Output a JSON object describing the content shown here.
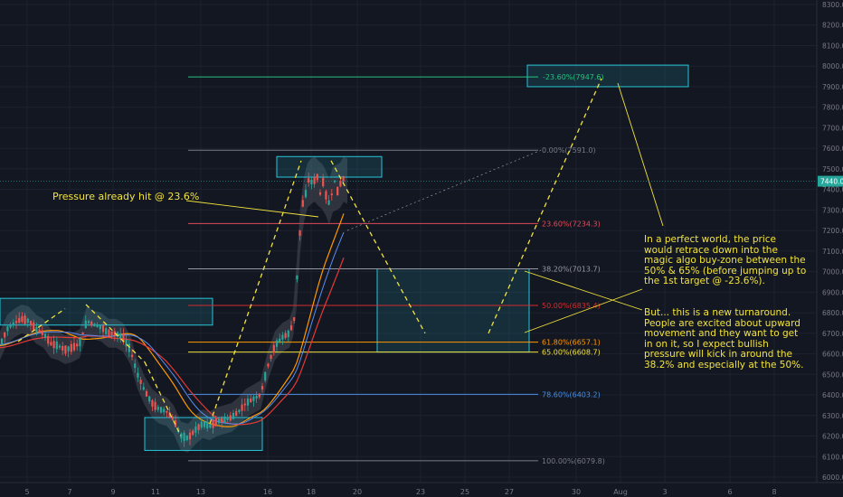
{
  "chart_data": {
    "type": "candlestick",
    "title": "",
    "xlabel": "",
    "ylabel": "",
    "ylim": [
      6000,
      8300
    ],
    "y_ticks": [
      "6000.0",
      "6100.0",
      "6200.0",
      "6300.0",
      "6400.0",
      "6500.0",
      "6600.0",
      "6700.0",
      "6800.0",
      "6900.0",
      "7000.0",
      "7100.0",
      "7200.0",
      "7300.0",
      "7400.0",
      "7500.0",
      "7600.0",
      "7700.0",
      "7800.0",
      "7900.0",
      "8000.0",
      "8100.0",
      "8200.0",
      "8300.0"
    ],
    "x_ticks": [
      "5",
      "7",
      "9",
      "11",
      "13",
      "16",
      "18",
      "20",
      "23",
      "25",
      "27",
      "30",
      "Aug",
      "3",
      "6",
      "8"
    ],
    "current_price": "7440.0",
    "price_path": [
      [
        0,
        6640
      ],
      [
        8,
        6720
      ],
      [
        16,
        6750
      ],
      [
        24,
        6770
      ],
      [
        32,
        6760
      ],
      [
        40,
        6720
      ],
      [
        48,
        6700
      ],
      [
        56,
        6650
      ],
      [
        64,
        6640
      ],
      [
        72,
        6620
      ],
      [
        80,
        6630
      ],
      [
        88,
        6650
      ],
      [
        96,
        6760
      ],
      [
        104,
        6740
      ],
      [
        112,
        6730
      ],
      [
        120,
        6700
      ],
      [
        128,
        6700
      ],
      [
        136,
        6680
      ],
      [
        144,
        6620
      ],
      [
        152,
        6500
      ],
      [
        160,
        6420
      ],
      [
        168,
        6360
      ],
      [
        176,
        6330
      ],
      [
        184,
        6320
      ],
      [
        192,
        6280
      ],
      [
        200,
        6200
      ],
      [
        208,
        6190
      ],
      [
        216,
        6230
      ],
      [
        224,
        6260
      ],
      [
        232,
        6250
      ],
      [
        240,
        6270
      ],
      [
        248,
        6280
      ],
      [
        256,
        6290
      ],
      [
        264,
        6320
      ],
      [
        272,
        6360
      ],
      [
        280,
        6380
      ],
      [
        288,
        6400
      ],
      [
        296,
        6540
      ],
      [
        304,
        6640
      ],
      [
        312,
        6680
      ],
      [
        320,
        6700
      ],
      [
        326,
        6780
      ],
      [
        330,
        7100
      ],
      [
        334,
        7320
      ],
      [
        338,
        7380
      ],
      [
        342,
        7460
      ],
      [
        346,
        7420
      ],
      [
        350,
        7480
      ],
      [
        354,
        7380
      ],
      [
        358,
        7450
      ],
      [
        362,
        7320
      ],
      [
        366,
        7360
      ],
      [
        370,
        7440
      ],
      [
        374,
        7380
      ],
      [
        378,
        7460
      ],
      [
        382,
        7440
      ]
    ],
    "fib_levels": [
      {
        "label": "-23.60%(7947.6)",
        "value": 7947.6,
        "color": "#26c281"
      },
      {
        "label": "0.00%(7591.0)",
        "value": 7591.0,
        "color": "#787b86"
      },
      {
        "label": "23.60%(7234.3)",
        "value": 7234.3,
        "color": "#e04b5a"
      },
      {
        "label": "38.20%(7013.7)",
        "value": 7013.7,
        "color": "#9598a1"
      },
      {
        "label": "50.00%(6835.4)",
        "value": 6835.4,
        "color": "#d22d2d"
      },
      {
        "label": "61.80%(6657.1)",
        "value": 6657.1,
        "color": "#ff9800"
      },
      {
        "label": "65.00%(6608.7)",
        "value": 6608.7,
        "color": "#f2e33c"
      },
      {
        "label": "78.60%(6403.2)",
        "value": 6403.2,
        "color": "#4a8fe0"
      },
      {
        "label": "100.00%(6079.8)",
        "value": 6079.8,
        "color": "#787b86"
      }
    ],
    "annotations": [
      "Pressure already hit @ 23.6%",
      "In a perfect world, the price would retrace down into the magic algo buy-zone between the 50% & 65% (before jumping up to the 1st target @ -23.6%).",
      "But... this is a new turnaround. People are excited about upward movement and they want to get in on it, so I expect bullish pressure will kick in around the 38.2% and especially at the 50%."
    ],
    "grid": true
  },
  "colors": {
    "background": "#131722",
    "grid": "#1e2230",
    "axis_text": "#787b86",
    "bull": "#26a69a",
    "bear": "#ef5350",
    "annotation": "#f2e33c",
    "zone": "#26c6da",
    "price_label_bg": "#26a69a"
  }
}
